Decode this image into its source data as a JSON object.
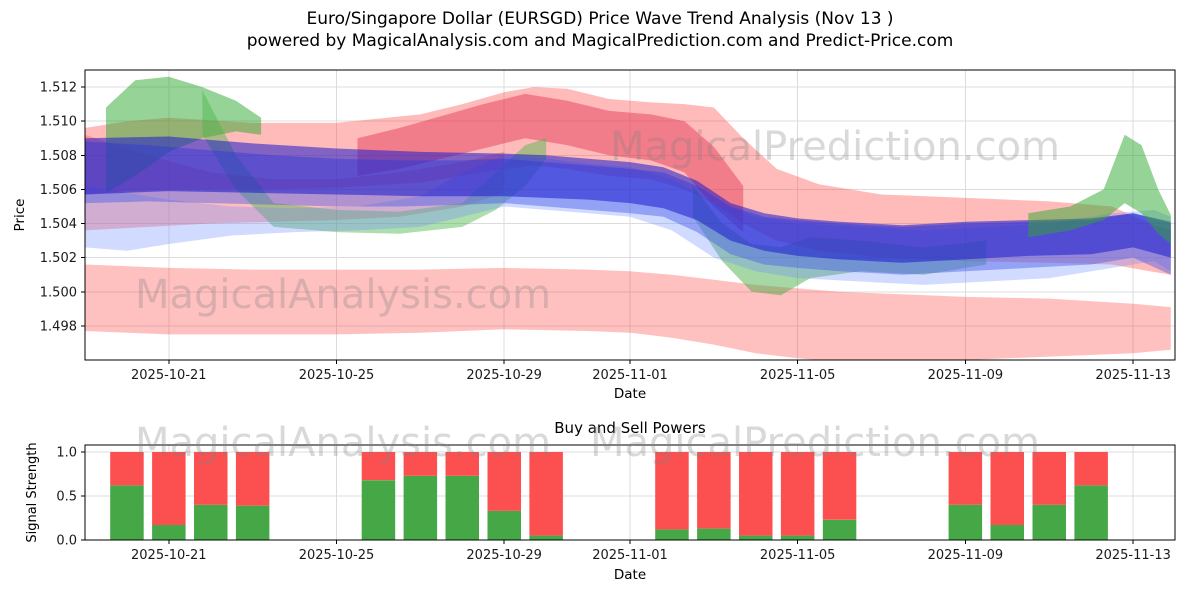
{
  "title": {
    "line1": "Euro/Singapore Dollar (EURSGD) Price Wave Trend Analysis (Nov 13 )",
    "line2": "powered by MagicalAnalysis.com and MagicalPrediction.com and Predict-Price.com"
  },
  "watermarks": {
    "analysis": "MagicalAnalysis.com",
    "prediction": "MagicalPrediction.com"
  },
  "chart_data": [
    {
      "type": "area",
      "title": "",
      "xlabel": "Date",
      "ylabel": "Price",
      "x_start_date": "2025-10-19",
      "x_span_days": 26,
      "ylim": [
        1.496,
        1.513
      ],
      "y_ticks": [
        1.498,
        1.5,
        1.502,
        1.504,
        1.506,
        1.508,
        1.51,
        1.512
      ],
      "x_ticks": [
        "2025-10-21",
        "2025-10-25",
        "2025-10-29",
        "2025-11-01",
        "2025-11-05",
        "2025-11-09",
        "2025-11-13"
      ],
      "grid": true,
      "bands": [
        {
          "name": "lower-forecast-pink",
          "color": "#ff4040",
          "opacity": 0.33,
          "x": [
            0,
            2,
            4,
            6,
            8,
            10,
            12,
            13,
            14,
            15,
            16,
            17,
            18,
            19,
            21,
            23,
            25,
            25.9
          ],
          "upper": [
            1.5016,
            1.5014,
            1.5013,
            1.5013,
            1.5013,
            1.5014,
            1.5013,
            1.5012,
            1.501,
            1.5007,
            1.5004,
            1.5002,
            1.5,
            1.4999,
            1.4997,
            1.4996,
            1.4993,
            1.4991
          ],
          "lower": [
            1.4977,
            1.4975,
            1.4975,
            1.4975,
            1.4976,
            1.4978,
            1.4977,
            1.4976,
            1.4973,
            1.4969,
            1.4964,
            1.4961,
            1.4959,
            1.4959,
            1.496,
            1.4962,
            1.4964,
            1.4966
          ]
        },
        {
          "name": "upper-forecast-red",
          "color": "#ff5252",
          "opacity": 0.4,
          "x": [
            0,
            1,
            2,
            4,
            6,
            8,
            9,
            10,
            10.7,
            11.5,
            12.5,
            13.5,
            14.3,
            15,
            15.7,
            16.5,
            17.5,
            19,
            21,
            23,
            24.5,
            25.4,
            25.9
          ],
          "upper": [
            1.5096,
            1.51,
            1.5102,
            1.5099,
            1.5099,
            1.5104,
            1.511,
            1.5117,
            1.512,
            1.5119,
            1.5113,
            1.5111,
            1.511,
            1.5108,
            1.509,
            1.5072,
            1.5063,
            1.5057,
            1.5055,
            1.5053,
            1.505,
            1.504,
            1.5036
          ],
          "lower": [
            1.5057,
            1.5059,
            1.506,
            1.506,
            1.5061,
            1.5064,
            1.5068,
            1.5072,
            1.5074,
            1.5072,
            1.5068,
            1.5066,
            1.506,
            1.5052,
            1.504,
            1.503,
            1.5024,
            1.502,
            1.5018,
            1.5017,
            1.5016,
            1.5012,
            1.501
          ]
        },
        {
          "name": "mid-red-left",
          "color": "#ff5252",
          "opacity": 0.38,
          "x": [
            0,
            1.5,
            3,
            4.5,
            6,
            7.5,
            9,
            10
          ],
          "upper": [
            1.5092,
            1.508,
            1.507,
            1.5066,
            1.5066,
            1.507,
            1.5076,
            1.5082
          ],
          "lower": [
            1.5036,
            1.5038,
            1.504,
            1.5041,
            1.5042,
            1.5044,
            1.505,
            1.5058
          ]
        },
        {
          "name": "crimson-core",
          "color": "#e03050",
          "opacity": 0.45,
          "x": [
            6.5,
            7.5,
            8.5,
            9.5,
            10.5,
            11.5,
            12.5,
            13.5,
            14.3,
            15,
            15.7
          ],
          "upper": [
            1.509,
            1.5096,
            1.5103,
            1.511,
            1.5116,
            1.5112,
            1.5106,
            1.5104,
            1.51,
            1.5085,
            1.5062
          ],
          "lower": [
            1.5068,
            1.5072,
            1.5078,
            1.5084,
            1.509,
            1.5086,
            1.508,
            1.5077,
            1.507,
            1.505,
            1.5035
          ]
        },
        {
          "name": "green-left-blob",
          "color": "#2ea82e",
          "opacity": 0.5,
          "x": [
            0.5,
            1.2,
            2,
            2.8,
            3.6,
            4.2
          ],
          "upper": [
            1.5108,
            1.5124,
            1.5126,
            1.512,
            1.5112,
            1.5102
          ],
          "lower": [
            1.5058,
            1.5068,
            1.5082,
            1.509,
            1.5094,
            1.5092
          ]
        },
        {
          "name": "green-mid-streak",
          "color": "#49b649",
          "opacity": 0.45,
          "x": [
            2.8,
            3.6,
            4.5,
            6,
            7.5,
            9,
            9.8,
            10.5,
            11
          ],
          "upper": [
            1.5118,
            1.508,
            1.5052,
            1.5048,
            1.5047,
            1.5052,
            1.507,
            1.5086,
            1.509
          ],
          "lower": [
            1.5092,
            1.506,
            1.5038,
            1.5035,
            1.5034,
            1.5038,
            1.5048,
            1.5062,
            1.5078
          ]
        },
        {
          "name": "green-dip",
          "color": "#3aa83a",
          "opacity": 0.45,
          "x": [
            14.5,
            15.2,
            15.9,
            16.6,
            17.3,
            18.5,
            20,
            21.5
          ],
          "upper": [
            1.5062,
            1.504,
            1.5028,
            1.5026,
            1.5032,
            1.503,
            1.5026,
            1.503
          ],
          "lower": [
            1.5044,
            1.5018,
            1.5,
            1.4998,
            1.5008,
            1.5012,
            1.501,
            1.5016
          ]
        },
        {
          "name": "light-blue-band",
          "color": "#6f8cff",
          "opacity": 0.32,
          "x": [
            0,
            1,
            2,
            3.5,
            5,
            6.5,
            8,
            9,
            10,
            11,
            12,
            13,
            14,
            15,
            16,
            17,
            18.5,
            20,
            21.5,
            23,
            24.5,
            25.5,
            25.9
          ],
          "upper": [
            1.5062,
            1.5058,
            1.5054,
            1.505,
            1.5049,
            1.505,
            1.5056,
            1.507,
            1.508,
            1.5078,
            1.5075,
            1.5073,
            1.5066,
            1.5052,
            1.5044,
            1.504,
            1.5038,
            1.5036,
            1.5038,
            1.504,
            1.5046,
            1.5048,
            1.5044
          ],
          "lower": [
            1.5026,
            1.5024,
            1.5028,
            1.5033,
            1.5035,
            1.5036,
            1.5038,
            1.5044,
            1.505,
            1.5048,
            1.5046,
            1.5044,
            1.5036,
            1.502,
            1.5012,
            1.5008,
            1.5006,
            1.5004,
            1.5006,
            1.5008,
            1.5014,
            1.5018,
            1.5012
          ]
        },
        {
          "name": "blue-band",
          "color": "#4156e8",
          "opacity": 0.42,
          "x": [
            0,
            1.5,
            3,
            4.5,
            6,
            7.5,
            9,
            10,
            11,
            12,
            13,
            13.8,
            14.6,
            15.4,
            16.2,
            17,
            18,
            19.5,
            21,
            22.5,
            24,
            25,
            25.9
          ],
          "upper": [
            1.5088,
            1.5086,
            1.5083,
            1.508,
            1.5078,
            1.5077,
            1.5077,
            1.5078,
            1.5076,
            1.5074,
            1.5072,
            1.507,
            1.5062,
            1.505,
            1.5044,
            1.5042,
            1.504,
            1.5038,
            1.504,
            1.5041,
            1.5042,
            1.5046,
            1.504
          ],
          "lower": [
            1.5052,
            1.5053,
            1.5052,
            1.5051,
            1.505,
            1.505,
            1.5051,
            1.5052,
            1.505,
            1.5048,
            1.5046,
            1.5044,
            1.5035,
            1.5022,
            1.5016,
            1.5014,
            1.5012,
            1.501,
            1.5012,
            1.5014,
            1.5016,
            1.502,
            1.501
          ]
        },
        {
          "name": "navy-core",
          "color": "#1c1ccc",
          "opacity": 0.55,
          "x": [
            0,
            2,
            4,
            6,
            8,
            10,
            11,
            12,
            13,
            13.8,
            14.6,
            15.4,
            16.2,
            17,
            18,
            19.5,
            21,
            22.5,
            24,
            25,
            25.9
          ],
          "upper": [
            1.509,
            1.5091,
            1.5087,
            1.5084,
            1.5082,
            1.5081,
            1.508,
            1.5078,
            1.5076,
            1.5073,
            1.5065,
            1.5052,
            1.5046,
            1.5043,
            1.5041,
            1.5039,
            1.5041,
            1.5042,
            1.5043,
            1.5046,
            1.5041
          ],
          "lower": [
            1.5057,
            1.5059,
            1.5058,
            1.5057,
            1.5056,
            1.5056,
            1.5055,
            1.5054,
            1.5052,
            1.5049,
            1.5042,
            1.503,
            1.5024,
            1.5021,
            1.5019,
            1.5017,
            1.5019,
            1.5021,
            1.5022,
            1.5026,
            1.502
          ]
        },
        {
          "name": "green-right-spike",
          "color": "#2ea82e",
          "opacity": 0.5,
          "x": [
            22.5,
            23.5,
            24.3,
            24.8,
            25.2,
            25.6,
            25.9
          ],
          "upper": [
            1.5046,
            1.505,
            1.506,
            1.5092,
            1.5086,
            1.506,
            1.5045
          ],
          "lower": [
            1.5032,
            1.5036,
            1.5042,
            1.5052,
            1.5046,
            1.5034,
            1.5028
          ]
        }
      ]
    },
    {
      "type": "bar",
      "title": "Buy and Sell Powers",
      "xlabel": "Date",
      "ylabel": "Signal Strength",
      "ylim": [
        0,
        1.08
      ],
      "y_ticks": [
        0.0,
        0.5,
        1.0
      ],
      "x_ticks": [
        "2025-10-21",
        "2025-10-25",
        "2025-10-29",
        "2025-11-01",
        "2025-11-05",
        "2025-11-09",
        "2025-11-13"
      ],
      "colors": {
        "buy": "#46a746",
        "sell": "#fc4f4f"
      },
      "bars": [
        {
          "date": "2025-10-20",
          "buy": 0.62,
          "sell": 0.38
        },
        {
          "date": "2025-10-21",
          "buy": 0.17,
          "sell": 0.83
        },
        {
          "date": "2025-10-22",
          "buy": 0.4,
          "sell": 0.6
        },
        {
          "date": "2025-10-23",
          "buy": 0.39,
          "sell": 0.61
        },
        {
          "date": "2025-10-26",
          "buy": 0.68,
          "sell": 0.32
        },
        {
          "date": "2025-10-27",
          "buy": 0.73,
          "sell": 0.27
        },
        {
          "date": "2025-10-28",
          "buy": 0.73,
          "sell": 0.27
        },
        {
          "date": "2025-10-29",
          "buy": 0.33,
          "sell": 0.67
        },
        {
          "date": "2025-10-30",
          "buy": 0.05,
          "sell": 0.95
        },
        {
          "date": "2025-11-02",
          "buy": 0.12,
          "sell": 0.88
        },
        {
          "date": "2025-11-03",
          "buy": 0.13,
          "sell": 0.87
        },
        {
          "date": "2025-11-04",
          "buy": 0.05,
          "sell": 0.95
        },
        {
          "date": "2025-11-05",
          "buy": 0.05,
          "sell": 0.95
        },
        {
          "date": "2025-11-06",
          "buy": 0.23,
          "sell": 0.77
        },
        {
          "date": "2025-11-09",
          "buy": 0.4,
          "sell": 0.6
        },
        {
          "date": "2025-11-10",
          "buy": 0.17,
          "sell": 0.83
        },
        {
          "date": "2025-11-11",
          "buy": 0.4,
          "sell": 0.6
        },
        {
          "date": "2025-11-12",
          "buy": 0.62,
          "sell": 0.38
        }
      ]
    }
  ]
}
